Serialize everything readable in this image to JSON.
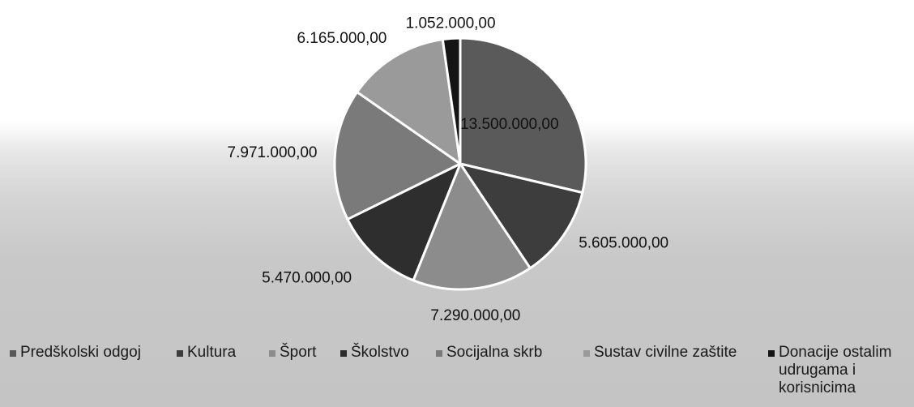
{
  "chart_data": {
    "type": "pie",
    "title": "",
    "series": [
      {
        "values": [
          13500000,
          5605000,
          7290000,
          5470000,
          7971000,
          6165000,
          1052000
        ],
        "value_labels": [
          "13.500.000,00",
          "5.605.000,00",
          "7.290.000,00",
          "5.470.000,00",
          "7.971.000,00",
          "6.165.000,00",
          "1.052.000,00"
        ]
      }
    ],
    "categories": [
      "Predškolski odgoj",
      "Kultura",
      "Šport",
      "Školstvo",
      "Socijalna skrb",
      "Sustav civilne zaštite",
      "Donacije ostalim udrugama i korisnicima"
    ],
    "colors": [
      "#5a5a5a",
      "#3d3d3d",
      "#8c8c8c",
      "#2e2e2e",
      "#7a7a7a",
      "#9a9a9a",
      "#141414"
    ],
    "legend_position": "bottom",
    "start_angle": "12 o'clock",
    "direction": "clockwise"
  }
}
